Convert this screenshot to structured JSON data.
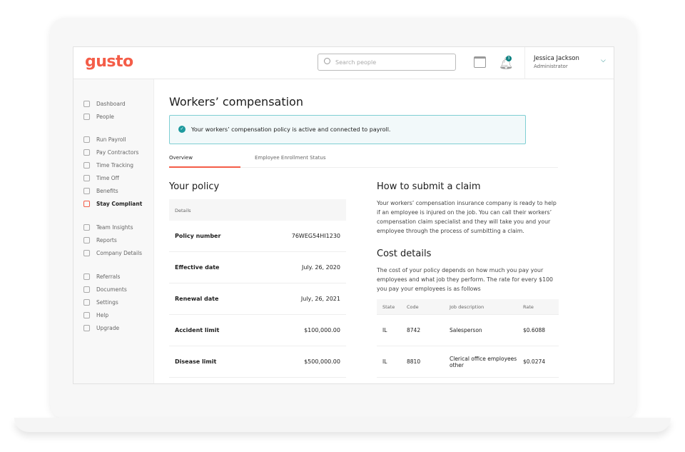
{
  "brand": {
    "logo": "gusto",
    "accent": "#f45d48",
    "teal": "#1e9a9e"
  },
  "header": {
    "search_placeholder": "Search people",
    "notification_count": "3",
    "user_name": "Jessica Jackson",
    "user_role": "Administrator"
  },
  "sidebar": {
    "items": [
      {
        "label": "Dashboard",
        "icon": "home-icon"
      },
      {
        "label": "People",
        "icon": "person-icon"
      },
      {
        "label": "Run Payroll",
        "icon": "dollar-icon"
      },
      {
        "label": "Pay Contractors",
        "icon": "cash-icon"
      },
      {
        "label": "Time Tracking",
        "icon": "clock-icon"
      },
      {
        "label": "Time Off",
        "icon": "plane-icon"
      },
      {
        "label": "Benefits",
        "icon": "heart-icon"
      },
      {
        "label": "Stay Compliant",
        "icon": "lock-icon",
        "active": true
      },
      {
        "label": "Team Insights",
        "icon": "chat-icon"
      },
      {
        "label": "Reports",
        "icon": "folder-icon"
      },
      {
        "label": "Company Details",
        "icon": "store-icon"
      },
      {
        "label": "Referrals",
        "icon": "gift-icon"
      },
      {
        "label": "Documents",
        "icon": "document-icon"
      },
      {
        "label": "Settings",
        "icon": "gear-icon"
      },
      {
        "label": "Help",
        "icon": "lifebuoy-icon"
      },
      {
        "label": "Upgrade",
        "icon": "upgrade-icon"
      }
    ]
  },
  "main": {
    "title": "Workers’ compensation",
    "alert": "Your workers’ compensation policy is active and connected to payroll.",
    "tabs": [
      {
        "label": "Overview",
        "active": true
      },
      {
        "label": "Employee Enrollment Status"
      }
    ],
    "policy": {
      "title": "Your policy",
      "header": "Details",
      "rows": [
        {
          "label": "Policy number",
          "value": "76WEG54HI1230"
        },
        {
          "label": "Effective date",
          "value": "July. 26, 2020"
        },
        {
          "label": "Renewal date",
          "value": "July, 26, 2021"
        },
        {
          "label": "Accident limit",
          "value": "$100,000.00"
        },
        {
          "label": "Disease limit",
          "value": "$500,000.00"
        }
      ]
    },
    "claim": {
      "title": "How to submit a claim",
      "text": "Your workers’ compensation insurance company is ready to help if an employee is injured on the job. You can call their workers’ compensation claim specialist and they will take you and your employee through the process of sumbitting a claim."
    },
    "cost": {
      "title": "Cost details",
      "text": "The cost of your policy depends on how much you pay your employees and what job they perform. The rate for every $100 you pay your employees is as follows",
      "columns": [
        "State",
        "Code",
        "Job description",
        "Rate"
      ],
      "rows": [
        [
          "IL",
          "8742",
          "Salesperson",
          "$0.6088"
        ],
        [
          "IL",
          "8810",
          "Clerical office employees other",
          "$0.0274"
        ]
      ]
    }
  }
}
